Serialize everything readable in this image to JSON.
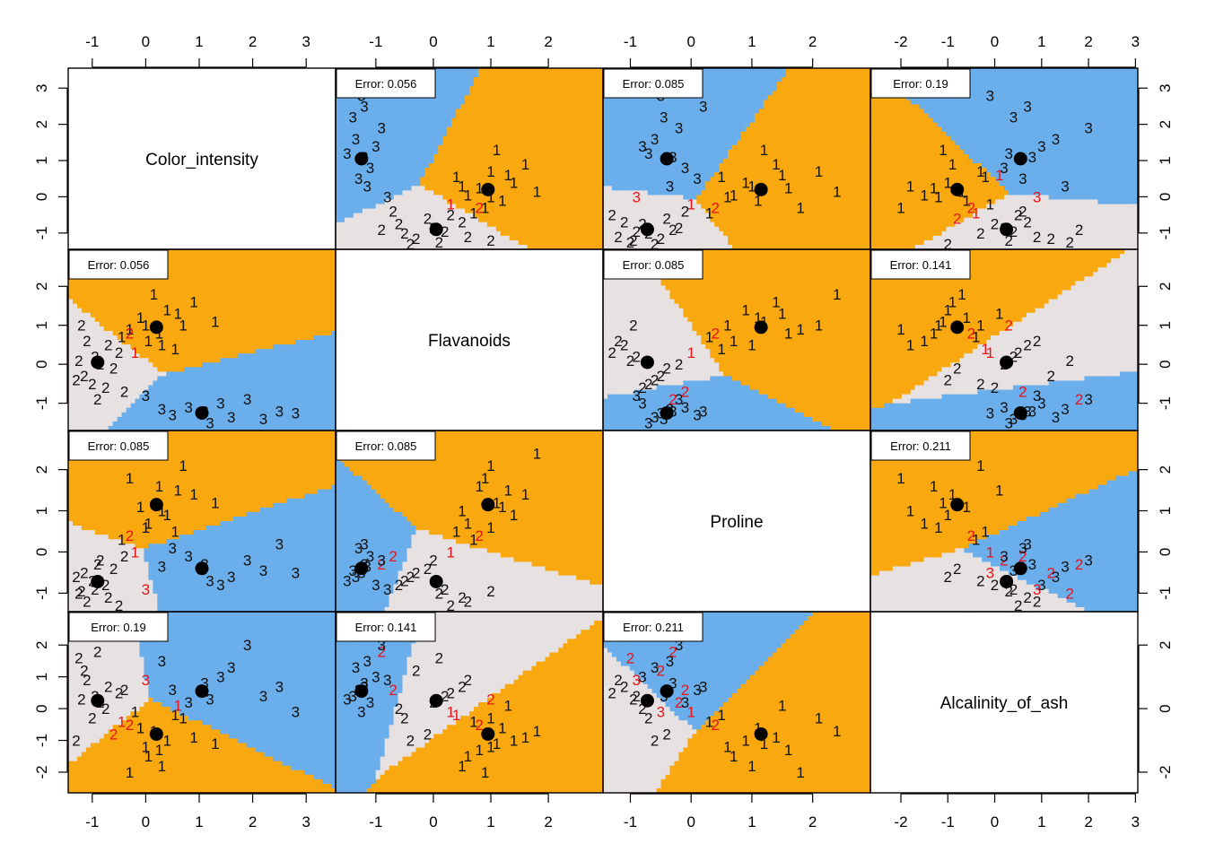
{
  "chart_data": {
    "type": "scatter",
    "layout": "pairs-matrix",
    "variables": [
      "Color_intensity",
      "Flavanoids",
      "Proline",
      "Alcalinity_of_ash"
    ],
    "ticks": {
      "Color_intensity": [
        "-1",
        "0",
        "1",
        "2",
        "3"
      ],
      "Flavanoids": [
        "-1",
        "0",
        "1",
        "2"
      ],
      "Proline": [
        "-1",
        "0",
        "1",
        "2"
      ],
      "Alcalinity_of_ash": [
        "-2",
        "-1",
        "0",
        "1",
        "2",
        "3"
      ]
    },
    "ticks_left": {
      "Color_intensity": [
        "-1",
        "0",
        "1",
        "2",
        "3"
      ],
      "Flavanoids": [
        "-1",
        "0",
        "1",
        "2"
      ],
      "Proline": [
        "-1",
        "0",
        "1",
        "2"
      ],
      "Alcalinity_of_ash": [
        "-2",
        "-1",
        "0",
        "1",
        "2"
      ]
    },
    "ticks_right": {
      "Color_intensity": [
        "-1",
        "0",
        "1",
        "2",
        "3"
      ],
      "Flavanoids": [
        "-1",
        "0",
        "1",
        "2"
      ],
      "Proline": [
        "-1",
        "0",
        "1",
        "2"
      ],
      "Alcalinity_of_ash": [
        "-2",
        "0",
        "2"
      ]
    },
    "ranges": {
      "Color_intensity": [
        -1.45,
        3.55
      ],
      "Flavanoids": [
        -1.7,
        2.95
      ],
      "Proline": [
        -1.45,
        2.95
      ],
      "Alcalinity_of_ash": [
        -2.65,
        3.05
      ]
    },
    "region_colors": {
      "1": "#f9a90f",
      "2": "#e7e1e1",
      "3": "#6aaeeb"
    },
    "misclassified_color": "#e8141a",
    "point_color": "#111111",
    "centroid_color": "#000000",
    "errors": [
      {
        "row": 0,
        "col": 1,
        "label": "Error: 0.056"
      },
      {
        "row": 0,
        "col": 2,
        "label": "Error: 0.085"
      },
      {
        "row": 0,
        "col": 3,
        "label": "Error: 0.19"
      },
      {
        "row": 1,
        "col": 0,
        "label": "Error: 0.056"
      },
      {
        "row": 1,
        "col": 2,
        "label": "Error: 0.085"
      },
      {
        "row": 1,
        "col": 3,
        "label": "Error: 0.141"
      },
      {
        "row": 2,
        "col": 0,
        "label": "Error: 0.085"
      },
      {
        "row": 2,
        "col": 1,
        "label": "Error: 0.085"
      },
      {
        "row": 2,
        "col": 3,
        "label": "Error: 0.211"
      },
      {
        "row": 3,
        "col": 0,
        "label": "Error: 0.19"
      },
      {
        "row": 3,
        "col": 1,
        "label": "Error: 0.141"
      },
      {
        "row": 3,
        "col": 2,
        "label": "Error: 0.211"
      }
    ],
    "centroids": [
      {
        "class": "1",
        "Color_intensity": 0.2,
        "Flavanoids": 0.95,
        "Proline": 1.15,
        "Alcalinity_of_ash": -0.8
      },
      {
        "class": "2",
        "Color_intensity": -0.9,
        "Flavanoids": 0.05,
        "Proline": -0.72,
        "Alcalinity_of_ash": 0.25
      },
      {
        "class": "3",
        "Color_intensity": 1.05,
        "Flavanoids": -1.25,
        "Proline": -0.4,
        "Alcalinity_of_ash": 0.55
      }
    ],
    "points": [
      {
        "class": "1",
        "pred": "1",
        "Color_intensity": 0.25,
        "Flavanoids": 0.8,
        "Proline": 1.6,
        "Alcalinity_of_ash": -1.3
      },
      {
        "class": "1",
        "pred": "1",
        "Color_intensity": -0.1,
        "Flavanoids": 1.2,
        "Proline": 1.1,
        "Alcalinity_of_ash": -0.6
      },
      {
        "class": "1",
        "pred": "1",
        "Color_intensity": 0.4,
        "Flavanoids": 1.4,
        "Proline": 0.9,
        "Alcalinity_of_ash": -1.0
      },
      {
        "class": "1",
        "pred": "1",
        "Color_intensity": 0.7,
        "Flavanoids": 1.0,
        "Proline": 2.1,
        "Alcalinity_of_ash": -0.3
      },
      {
        "class": "1",
        "pred": "1",
        "Color_intensity": 0.05,
        "Flavanoids": 0.6,
        "Proline": 0.7,
        "Alcalinity_of_ash": -1.5
      },
      {
        "class": "1",
        "pred": "1",
        "Color_intensity": 0.9,
        "Flavanoids": 1.6,
        "Proline": 1.4,
        "Alcalinity_of_ash": -0.9
      },
      {
        "class": "1",
        "pred": "1",
        "Color_intensity": -0.3,
        "Flavanoids": 0.9,
        "Proline": 1.8,
        "Alcalinity_of_ash": -2.0
      },
      {
        "class": "1",
        "pred": "1",
        "Color_intensity": 0.55,
        "Flavanoids": 0.4,
        "Proline": 0.5,
        "Alcalinity_of_ash": -0.2
      },
      {
        "class": "1",
        "pred": "1",
        "Color_intensity": 1.3,
        "Flavanoids": 1.1,
        "Proline": 1.2,
        "Alcalinity_of_ash": -1.1
      },
      {
        "class": "1",
        "pred": "1",
        "Color_intensity": 0.15,
        "Flavanoids": 1.8,
        "Proline": 2.4,
        "Alcalinity_of_ash": -0.7
      },
      {
        "class": "1",
        "pred": "1",
        "Color_intensity": -0.45,
        "Flavanoids": 0.7,
        "Proline": 0.3,
        "Alcalinity_of_ash": -0.4
      },
      {
        "class": "1",
        "pred": "1",
        "Color_intensity": 0.3,
        "Flavanoids": 0.5,
        "Proline": 1.0,
        "Alcalinity_of_ash": -1.8
      },
      {
        "class": "1",
        "pred": "1",
        "Color_intensity": 0.6,
        "Flavanoids": 1.3,
        "Proline": 1.5,
        "Alcalinity_of_ash": 0.1
      },
      {
        "class": "1",
        "pred": "2",
        "Color_intensity": -0.2,
        "Flavanoids": 0.3,
        "Proline": 0.0,
        "Alcalinity_of_ash": -0.1
      },
      {
        "class": "1",
        "pred": "1",
        "Color_intensity": 0.0,
        "Flavanoids": 1.0,
        "Proline": 0.6,
        "Alcalinity_of_ash": -1.2
      },
      {
        "class": "2",
        "pred": "2",
        "Color_intensity": -0.95,
        "Flavanoids": 0.2,
        "Proline": -0.9,
        "Alcalinity_of_ash": 0.4
      },
      {
        "class": "2",
        "pred": "2",
        "Color_intensity": -1.15,
        "Flavanoids": -0.3,
        "Proline": -0.5,
        "Alcalinity_of_ash": 1.2
      },
      {
        "class": "2",
        "pred": "2",
        "Color_intensity": -0.7,
        "Flavanoids": 0.5,
        "Proline": -1.1,
        "Alcalinity_of_ash": 0.7
      },
      {
        "class": "2",
        "pred": "2",
        "Color_intensity": -1.0,
        "Flavanoids": -0.5,
        "Proline": -0.7,
        "Alcalinity_of_ash": -0.3
      },
      {
        "class": "2",
        "pred": "2",
        "Color_intensity": -0.85,
        "Flavanoids": 0.0,
        "Proline": -0.2,
        "Alcalinity_of_ash": 0.2
      },
      {
        "class": "2",
        "pred": "2",
        "Color_intensity": -1.25,
        "Flavanoids": 0.1,
        "Proline": -1.0,
        "Alcalinity_of_ash": 1.6
      },
      {
        "class": "2",
        "pred": "2",
        "Color_intensity": -0.6,
        "Flavanoids": -0.1,
        "Proline": -0.4,
        "Alcalinity_of_ash": -0.8
      },
      {
        "class": "2",
        "pred": "2",
        "Color_intensity": -1.1,
        "Flavanoids": 0.6,
        "Proline": -1.2,
        "Alcalinity_of_ash": 0.9
      },
      {
        "class": "2",
        "pred": "2",
        "Color_intensity": -0.75,
        "Flavanoids": -0.6,
        "Proline": -0.8,
        "Alcalinity_of_ash": 0.0
      },
      {
        "class": "2",
        "pred": "2",
        "Color_intensity": -1.3,
        "Flavanoids": -0.4,
        "Proline": -0.6,
        "Alcalinity_of_ash": -1.0
      },
      {
        "class": "2",
        "pred": "2",
        "Color_intensity": -0.5,
        "Flavanoids": 0.3,
        "Proline": -1.3,
        "Alcalinity_of_ash": 0.5
      },
      {
        "class": "2",
        "pred": "2",
        "Color_intensity": -0.9,
        "Flavanoids": -0.9,
        "Proline": -0.3,
        "Alcalinity_of_ash": 1.8
      },
      {
        "class": "2",
        "pred": "1",
        "Color_intensity": -0.3,
        "Flavanoids": 0.8,
        "Proline": 0.4,
        "Alcalinity_of_ash": -0.5
      },
      {
        "class": "2",
        "pred": "3",
        "Color_intensity": -0.4,
        "Flavanoids": -0.7,
        "Proline": -0.1,
        "Alcalinity_of_ash": 0.6
      },
      {
        "class": "2",
        "pred": "2",
        "Color_intensity": -1.2,
        "Flavanoids": 1.0,
        "Proline": -0.95,
        "Alcalinity_of_ash": 0.3
      },
      {
        "class": "3",
        "pred": "3",
        "Color_intensity": 1.1,
        "Flavanoids": -1.2,
        "Proline": -0.3,
        "Alcalinity_of_ash": 0.8
      },
      {
        "class": "3",
        "pred": "3",
        "Color_intensity": 1.6,
        "Flavanoids": -1.35,
        "Proline": -0.6,
        "Alcalinity_of_ash": 1.3
      },
      {
        "class": "3",
        "pred": "3",
        "Color_intensity": 0.8,
        "Flavanoids": -1.1,
        "Proline": -0.1,
        "Alcalinity_of_ash": 0.2
      },
      {
        "class": "3",
        "pred": "3",
        "Color_intensity": 2.2,
        "Flavanoids": -1.4,
        "Proline": -0.45,
        "Alcalinity_of_ash": 0.4
      },
      {
        "class": "3",
        "pred": "3",
        "Color_intensity": 1.4,
        "Flavanoids": -1.0,
        "Proline": -0.8,
        "Alcalinity_of_ash": 1.0
      },
      {
        "class": "3",
        "pred": "3",
        "Color_intensity": 0.5,
        "Flavanoids": -1.3,
        "Proline": 0.1,
        "Alcalinity_of_ash": 0.6
      },
      {
        "class": "3",
        "pred": "3",
        "Color_intensity": 2.8,
        "Flavanoids": -1.25,
        "Proline": -0.5,
        "Alcalinity_of_ash": -0.1
      },
      {
        "class": "3",
        "pred": "3",
        "Color_intensity": 1.9,
        "Flavanoids": -0.9,
        "Proline": -0.2,
        "Alcalinity_of_ash": 2.0
      },
      {
        "class": "3",
        "pred": "3",
        "Color_intensity": 1.2,
        "Flavanoids": -1.5,
        "Proline": -0.7,
        "Alcalinity_of_ash": 0.3
      },
      {
        "class": "3",
        "pred": "3",
        "Color_intensity": 0.3,
        "Flavanoids": -1.15,
        "Proline": -0.35,
        "Alcalinity_of_ash": 1.5
      },
      {
        "class": "3",
        "pred": "2",
        "Color_intensity": 0.0,
        "Flavanoids": -0.8,
        "Proline": -0.9,
        "Alcalinity_of_ash": 0.9
      },
      {
        "class": "3",
        "pred": "3",
        "Color_intensity": 2.5,
        "Flavanoids": -1.2,
        "Proline": 0.2,
        "Alcalinity_of_ash": 0.7
      }
    ]
  }
}
